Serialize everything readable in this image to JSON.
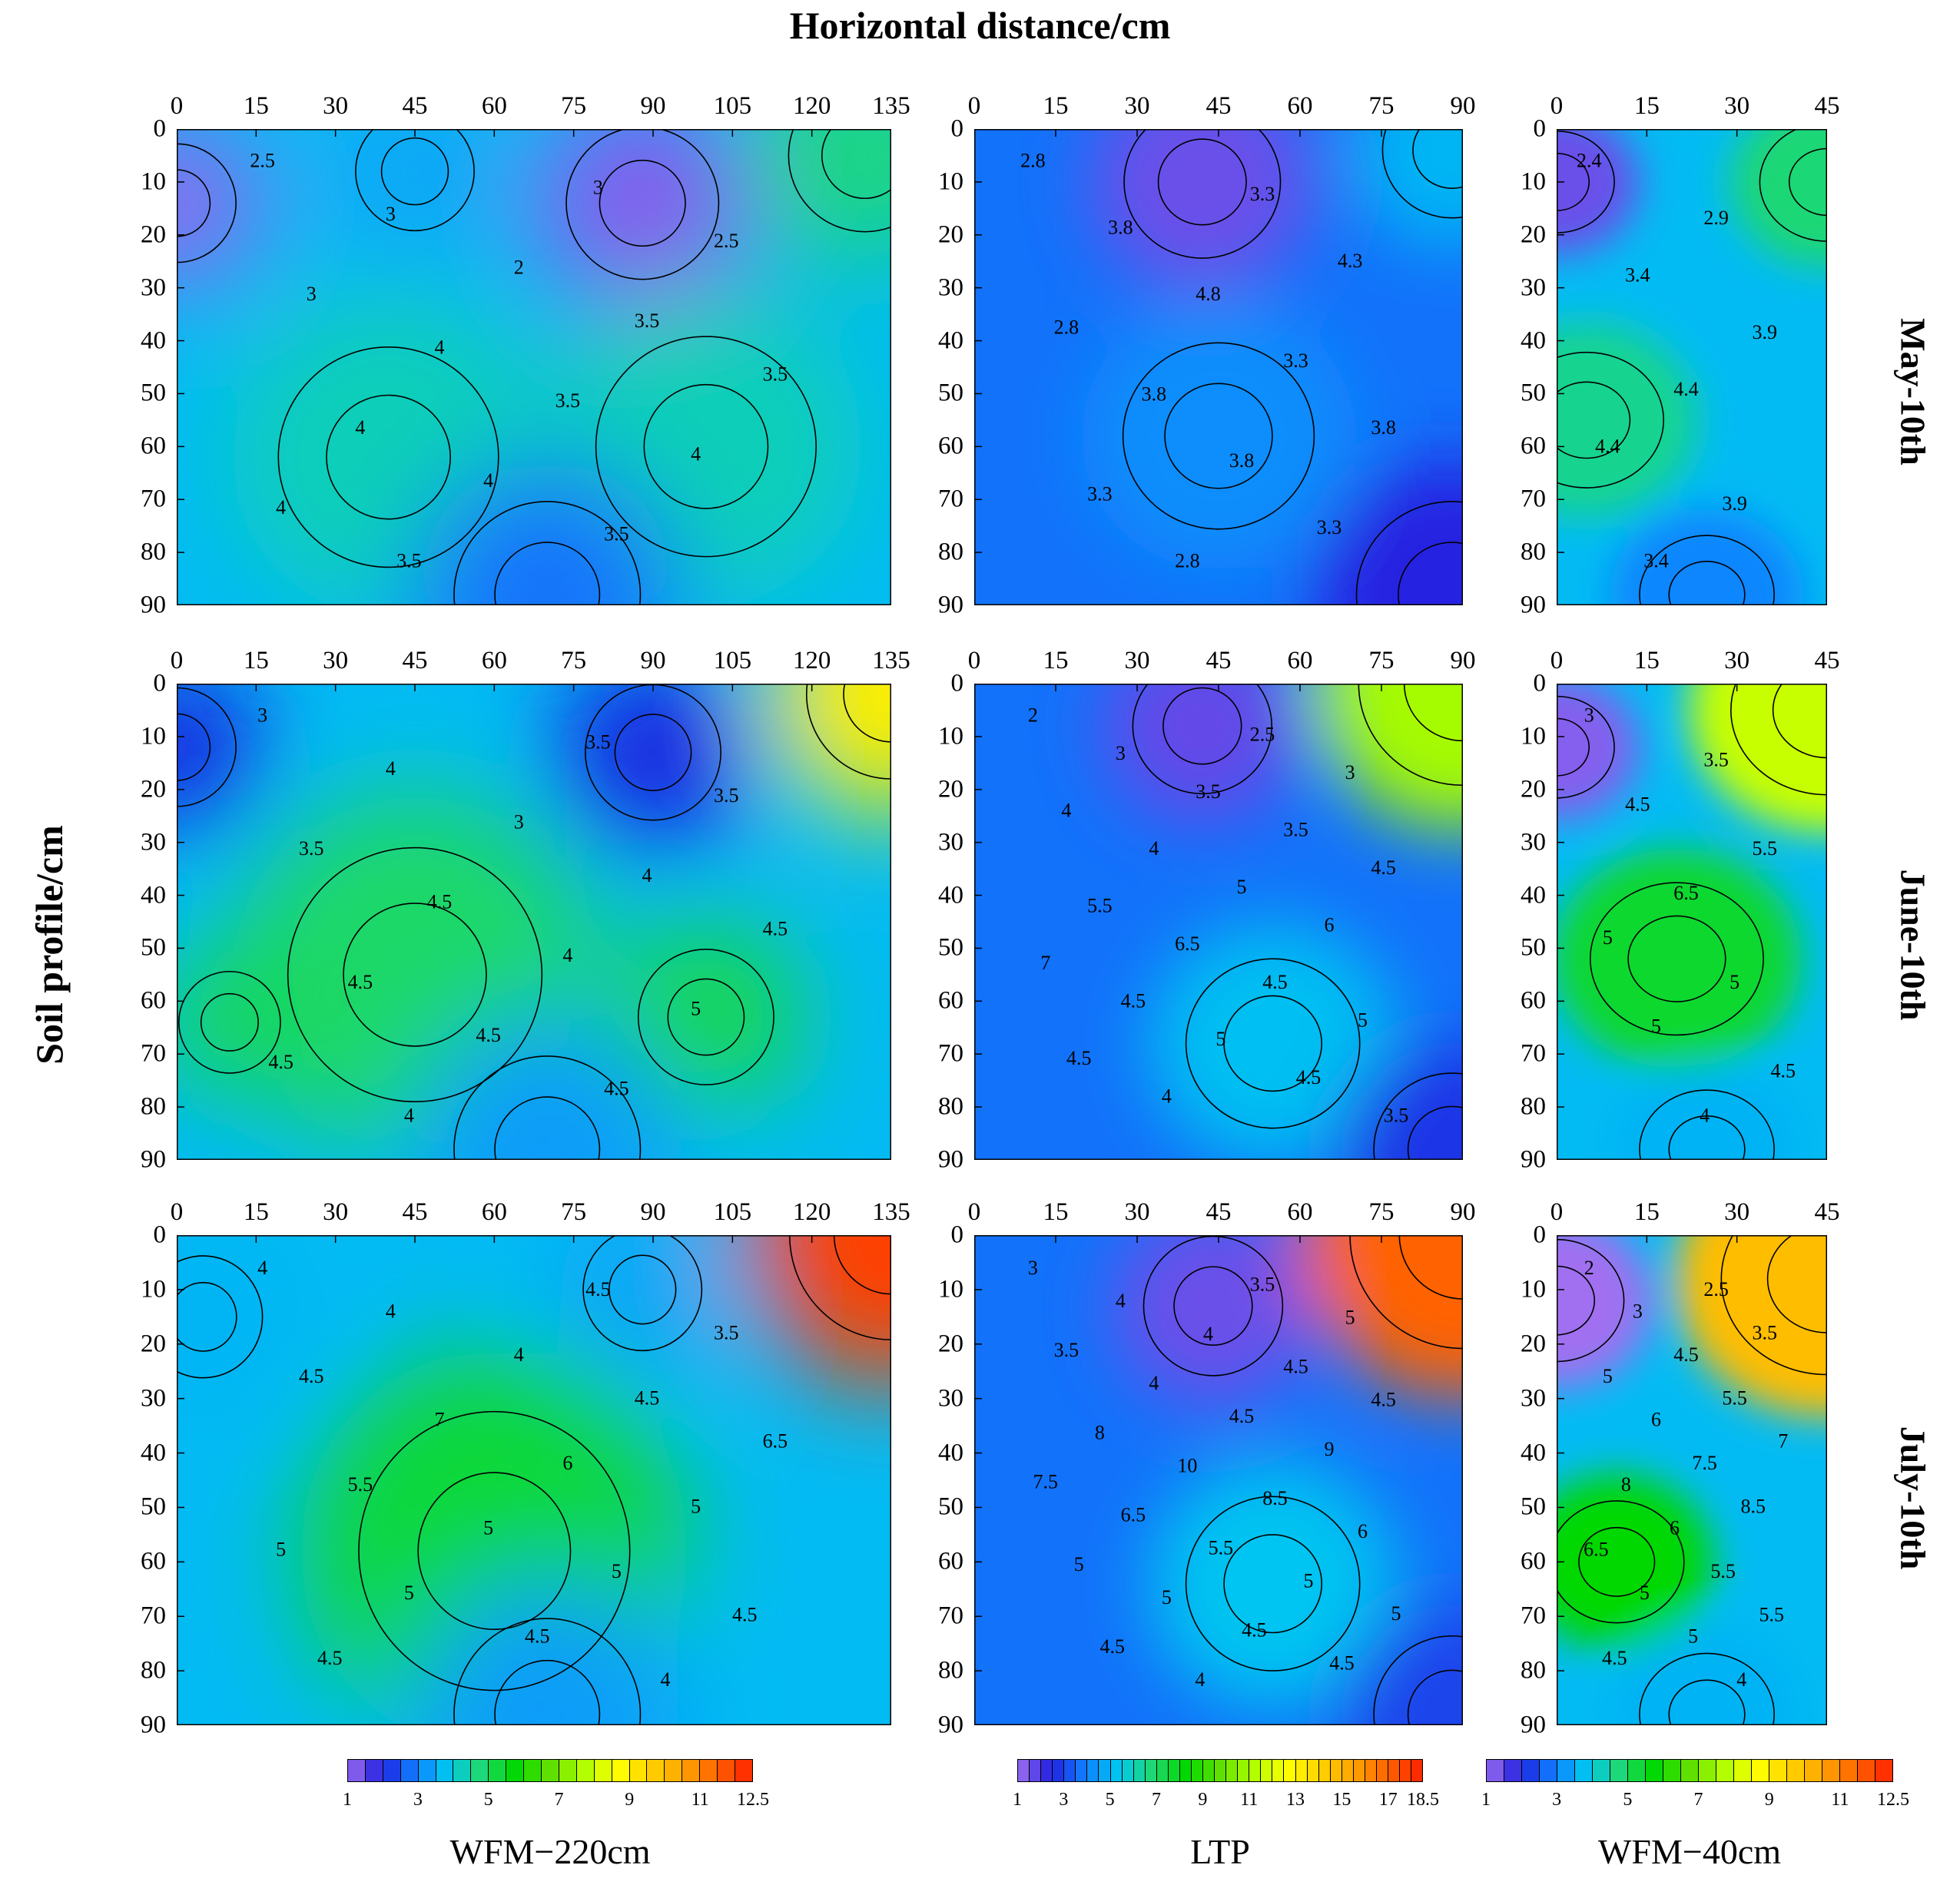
{
  "x_title": "Horizontal distance/cm",
  "y_title": "Soil profile/cm",
  "rows": [
    "May-10th",
    "June-10th",
    "July-10th"
  ],
  "colors": {
    "ramp": [
      "#a070f0",
      "#2020e0",
      "#1080ff",
      "#00c8f0",
      "#20d870",
      "#00d800",
      "#60e000",
      "#b0ff00",
      "#ffff00",
      "#ffd000",
      "#ffa000",
      "#ff6000",
      "#ff2000"
    ],
    "line": "#000000"
  },
  "chart_data": [
    {
      "type": "heatmap",
      "name": "WFM-220cm May-10th",
      "row": "May-10th",
      "column": "WFM-220cm",
      "x_ticks": [
        0,
        15,
        30,
        45,
        60,
        75,
        90,
        105,
        120,
        135
      ],
      "y_ticks": [
        0,
        10,
        20,
        30,
        40,
        50,
        60,
        70,
        80,
        90
      ],
      "xlim": [
        0,
        135
      ],
      "ylim": [
        0,
        90
      ],
      "contour_labels": [
        "2.5",
        "3",
        "3",
        "2.5",
        "2",
        "3",
        "3.5",
        "4",
        "3.5",
        "3.5",
        "4",
        "4",
        "4",
        "4",
        "3.5",
        "3.5"
      ],
      "features": [
        {
          "x": 0,
          "y": 14,
          "v": 1.1,
          "r": 14
        },
        {
          "x": 88,
          "y": 14,
          "v": 1.2,
          "r": 18
        },
        {
          "x": 130,
          "y": 5,
          "v": 4.7,
          "r": 18
        },
        {
          "x": 40,
          "y": 62,
          "v": 4.3,
          "r": 26
        },
        {
          "x": 100,
          "y": 60,
          "v": 4.3,
          "r": 26
        },
        {
          "x": 45,
          "y": 8,
          "v": 3.4,
          "r": 14
        },
        {
          "x": 70,
          "y": 88,
          "v": 2.8,
          "r": 22
        }
      ]
    },
    {
      "type": "heatmap",
      "name": "LTP May-10th",
      "row": "May-10th",
      "column": "LTP",
      "x_ticks": [
        0,
        15,
        30,
        45,
        60,
        75,
        90
      ],
      "y_ticks": [
        0,
        10,
        20,
        30,
        40,
        50,
        60,
        70,
        80,
        90
      ],
      "xlim": [
        0,
        90
      ],
      "ylim": [
        0,
        90
      ],
      "contour_labels": [
        "2.8",
        "3.3",
        "3.8",
        "4.3",
        "4.8",
        "2.8",
        "3.3",
        "3.8",
        "3.8",
        "3.8",
        "3.3",
        "3.3",
        "2.8"
      ],
      "features": [
        {
          "x": 42,
          "y": 10,
          "v": 1.6,
          "r": 18
        },
        {
          "x": 88,
          "y": 4,
          "v": 5.0,
          "r": 16
        },
        {
          "x": 45,
          "y": 58,
          "v": 4.2,
          "r": 22
        },
        {
          "x": 88,
          "y": 88,
          "v": 2.4,
          "r": 22
        }
      ]
    },
    {
      "type": "heatmap",
      "name": "WFM-40cm May-10th",
      "row": "May-10th",
      "column": "WFM-40cm",
      "x_ticks": [
        0,
        15,
        30,
        45
      ],
      "y_ticks": [
        0,
        10,
        20,
        30,
        40,
        50,
        60,
        70,
        80,
        90
      ],
      "xlim": [
        0,
        45
      ],
      "ylim": [
        0,
        90
      ],
      "contour_labels": [
        "2.4",
        "2.9",
        "3.4",
        "3.9",
        "4.4",
        "4.4",
        "3.9",
        "3.4"
      ],
      "features": [
        {
          "x": 0,
          "y": 10,
          "v": 1.4,
          "r": 12
        },
        {
          "x": 45,
          "y": 10,
          "v": 4.8,
          "r": 14
        },
        {
          "x": 5,
          "y": 55,
          "v": 4.6,
          "r": 16
        },
        {
          "x": 25,
          "y": 88,
          "v": 3.0,
          "r": 14
        }
      ]
    },
    {
      "type": "heatmap",
      "name": "WFM-220cm June-10th",
      "row": "June-10th",
      "column": "WFM-220cm",
      "x_ticks": [
        0,
        15,
        30,
        45,
        60,
        75,
        90,
        105,
        120,
        135
      ],
      "y_ticks": [
        0,
        10,
        20,
        30,
        40,
        50,
        60,
        70,
        80,
        90
      ],
      "xlim": [
        0,
        135
      ],
      "ylim": [
        0,
        90
      ],
      "contour_labels": [
        "3",
        "3.5",
        "4",
        "3.5",
        "3",
        "3.5",
        "4",
        "4.5",
        "4.5",
        "4",
        "4.5",
        "5",
        "4.5",
        "4.5",
        "4.5",
        "4"
      ],
      "features": [
        {
          "x": 0,
          "y": 12,
          "v": 2.0,
          "r": 14
        },
        {
          "x": 90,
          "y": 13,
          "v": 2.0,
          "r": 16
        },
        {
          "x": 135,
          "y": 2,
          "v": 9.0,
          "r": 20
        },
        {
          "x": 45,
          "y": 55,
          "v": 4.9,
          "r": 30
        },
        {
          "x": 100,
          "y": 63,
          "v": 5.2,
          "r": 16
        },
        {
          "x": 10,
          "y": 64,
          "v": 5.1,
          "r": 12
        },
        {
          "x": 70,
          "y": 88,
          "v": 3.3,
          "r": 22
        }
      ]
    },
    {
      "type": "heatmap",
      "name": "LTP June-10th",
      "row": "June-10th",
      "column": "LTP",
      "x_ticks": [
        0,
        15,
        30,
        45,
        60,
        75,
        90
      ],
      "y_ticks": [
        0,
        10,
        20,
        30,
        40,
        50,
        60,
        70,
        80,
        90
      ],
      "xlim": [
        0,
        90
      ],
      "ylim": [
        0,
        90
      ],
      "contour_labels": [
        "2",
        "2.5",
        "3",
        "3",
        "3.5",
        "4",
        "3.5",
        "4",
        "4.5",
        "5",
        "5.5",
        "6",
        "6.5",
        "7",
        "4.5",
        "4.5",
        "5",
        "5",
        "4.5",
        "4.5",
        "4",
        "3.5"
      ],
      "features": [
        {
          "x": 42,
          "y": 8,
          "v": 1.7,
          "r": 16
        },
        {
          "x": 90,
          "y": 0,
          "v": 11.0,
          "r": 24
        },
        {
          "x": 55,
          "y": 68,
          "v": 5.2,
          "r": 20
        },
        {
          "x": 88,
          "y": 88,
          "v": 2.8,
          "r": 18
        }
      ]
    },
    {
      "type": "heatmap",
      "name": "WFM-40cm June-10th",
      "row": "June-10th",
      "column": "WFM-40cm",
      "x_ticks": [
        0,
        15,
        30,
        45
      ],
      "y_ticks": [
        0,
        10,
        20,
        30,
        40,
        50,
        60,
        70,
        80,
        90
      ],
      "xlim": [
        0,
        45
      ],
      "ylim": [
        0,
        90
      ],
      "contour_labels": [
        "3",
        "3.5",
        "4.5",
        "5.5",
        "6.5",
        "5",
        "5",
        "5",
        "4.5",
        "4"
      ],
      "features": [
        {
          "x": 0,
          "y": 12,
          "v": 1.2,
          "r": 12
        },
        {
          "x": 45,
          "y": 5,
          "v": 8.0,
          "r": 20
        },
        {
          "x": 20,
          "y": 52,
          "v": 5.4,
          "r": 18
        },
        {
          "x": 25,
          "y": 88,
          "v": 3.6,
          "r": 14
        }
      ]
    },
    {
      "type": "heatmap",
      "name": "WFM-220cm July-10th",
      "row": "July-10th",
      "column": "WFM-220cm",
      "x_ticks": [
        0,
        15,
        30,
        45,
        60,
        75,
        90,
        105,
        120,
        135
      ],
      "y_ticks": [
        0,
        10,
        20,
        30,
        40,
        50,
        60,
        70,
        80,
        90
      ],
      "xlim": [
        0,
        135
      ],
      "ylim": [
        0,
        90
      ],
      "contour_labels": [
        "4",
        "4.5",
        "4",
        "3.5",
        "4",
        "4.5",
        "4.5",
        "7",
        "6.5",
        "6",
        "5.5",
        "5",
        "5",
        "5",
        "5",
        "5",
        "4.5",
        "4.5",
        "4.5",
        "4"
      ],
      "features": [
        {
          "x": 5,
          "y": 15,
          "v": 3.6,
          "r": 14
        },
        {
          "x": 88,
          "y": 10,
          "v": 3.4,
          "r": 14
        },
        {
          "x": 135,
          "y": 0,
          "v": 12.0,
          "r": 24
        },
        {
          "x": 60,
          "y": 58,
          "v": 5.3,
          "r": 32
        },
        {
          "x": 70,
          "y": 88,
          "v": 3.3,
          "r": 22
        }
      ]
    },
    {
      "type": "heatmap",
      "name": "LTP July-10th",
      "row": "July-10th",
      "column": "LTP",
      "x_ticks": [
        0,
        15,
        30,
        45,
        60,
        75,
        90
      ],
      "y_ticks": [
        0,
        10,
        20,
        30,
        40,
        50,
        60,
        70,
        80,
        90
      ],
      "xlim": [
        0,
        90
      ],
      "ylim": [
        0,
        90
      ],
      "contour_labels": [
        "3",
        "3.5",
        "4",
        "5",
        "4",
        "3.5",
        "4.5",
        "4",
        "4.5",
        "4.5",
        "8",
        "9",
        "10",
        "7.5",
        "8.5",
        "6.5",
        "6",
        "5.5",
        "5",
        "5",
        "5",
        "5",
        "4.5",
        "4.5",
        "4.5",
        "4"
      ],
      "features": [
        {
          "x": 44,
          "y": 13,
          "v": 1.6,
          "r": 16
        },
        {
          "x": 90,
          "y": 0,
          "v": 17.0,
          "r": 26
        },
        {
          "x": 55,
          "y": 64,
          "v": 5.3,
          "r": 20
        },
        {
          "x": 88,
          "y": 88,
          "v": 3.0,
          "r": 18
        }
      ]
    },
    {
      "type": "heatmap",
      "name": "WFM-40cm July-10th",
      "row": "July-10th",
      "column": "WFM-40cm",
      "x_ticks": [
        0,
        15,
        30,
        45
      ],
      "y_ticks": [
        0,
        10,
        20,
        30,
        40,
        50,
        60,
        70,
        80,
        90
      ],
      "xlim": [
        0,
        45
      ],
      "ylim": [
        0,
        90
      ],
      "contour_labels": [
        "2",
        "2.5",
        "3",
        "3.5",
        "4.5",
        "5",
        "5.5",
        "6",
        "7",
        "7.5",
        "8",
        "8.5",
        "6",
        "6.5",
        "5.5",
        "5",
        "5.5",
        "5",
        "4.5",
        "4"
      ],
      "features": [
        {
          "x": 0,
          "y": 12,
          "v": 1.0,
          "r": 14
        },
        {
          "x": 45,
          "y": 8,
          "v": 10.0,
          "r": 22
        },
        {
          "x": 10,
          "y": 60,
          "v": 5.8,
          "r": 14
        },
        {
          "x": 25,
          "y": 88,
          "v": 3.6,
          "r": 14
        }
      ]
    }
  ],
  "colorbars": [
    {
      "name": "WFM-220cm",
      "label": "WFM−220cm",
      "ticks": [
        "1",
        "3",
        "5",
        "7",
        "9",
        "11",
        "12.5"
      ],
      "tick_values": [
        1,
        3,
        5,
        7,
        9,
        11,
        12.5
      ],
      "min": 1,
      "max": 12.5,
      "step": 0.5
    },
    {
      "name": "LTP",
      "label": "LTP",
      "ticks": [
        "1",
        "3",
        "5",
        "7",
        "9",
        "11",
        "13",
        "15",
        "17",
        "18.5"
      ],
      "tick_values": [
        1,
        3,
        5,
        7,
        9,
        11,
        13,
        15,
        17,
        18.5
      ],
      "min": 1,
      "max": 18.5,
      "step": 0.5
    },
    {
      "name": "WFM-40cm",
      "label": "WFM−40cm",
      "ticks": [
        "1",
        "3",
        "5",
        "7",
        "9",
        "11",
        "12.5"
      ],
      "tick_values": [
        1,
        3,
        5,
        7,
        9,
        11,
        12.5
      ],
      "min": 1,
      "max": 12.5,
      "step": 0.5
    }
  ]
}
